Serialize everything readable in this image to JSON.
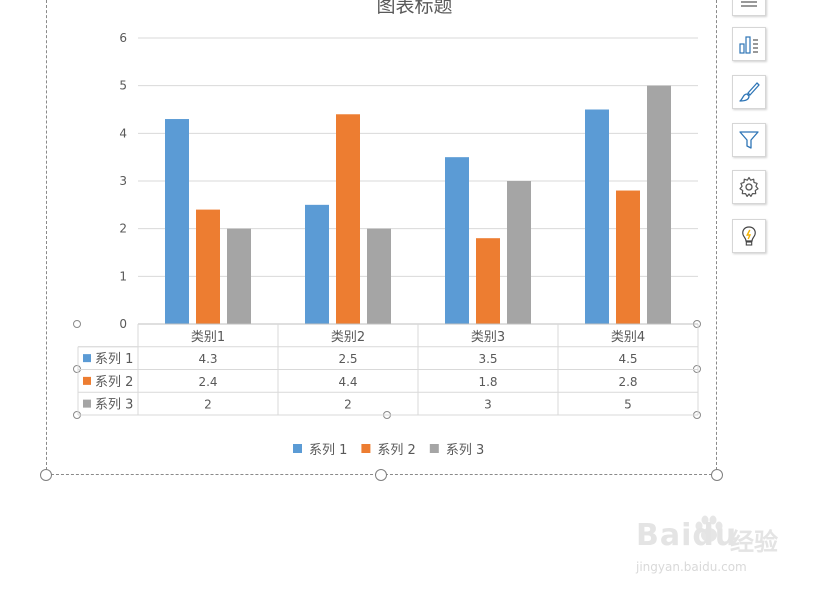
{
  "chart_data": {
    "type": "bar",
    "title": "图表标题",
    "categories": [
      "类别1",
      "类别2",
      "类别3",
      "类别4"
    ],
    "series": [
      {
        "name": "系列 1",
        "values": [
          4.3,
          2.5,
          3.5,
          4.5
        ],
        "color": "#5b9bd5"
      },
      {
        "name": "系列 2",
        "values": [
          2.4,
          4.4,
          1.8,
          2.8
        ],
        "color": "#ed7d31"
      },
      {
        "name": "系列 3",
        "values": [
          2,
          2,
          3,
          5
        ],
        "color": "#a5a5a5"
      }
    ],
    "ylim": [
      0,
      6
    ],
    "yticks": [
      0,
      1,
      2,
      3,
      4,
      5,
      6
    ],
    "grid": true,
    "data_table": true,
    "legend_position": "bottom"
  },
  "side_toolbar": {
    "buttons": [
      {
        "icon": "chart-elements-icon"
      },
      {
        "icon": "chart-styles-icon"
      },
      {
        "icon": "chart-filters-icon"
      },
      {
        "icon": "settings-icon"
      },
      {
        "icon": "lightbulb-icon"
      }
    ]
  },
  "watermark": {
    "brand": "Baidu",
    "product": "经验",
    "url": "jingyan.baidu.com"
  }
}
